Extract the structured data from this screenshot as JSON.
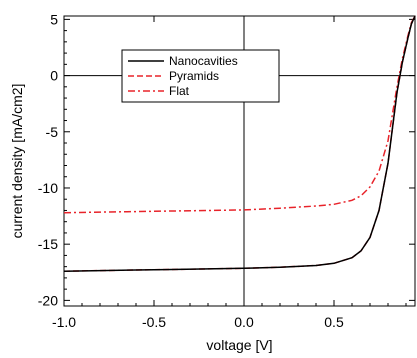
{
  "chart_data": {
    "type": "line",
    "xlabel": "voltage [V]",
    "ylabel": "current density [mA/cm2]",
    "xlim": [
      -1.0,
      0.95
    ],
    "ylim": [
      -20.5,
      5.3
    ],
    "x_ticks": [
      -1.0,
      -0.5,
      0.0,
      0.5
    ],
    "x_tick_labels": [
      "-1.0",
      "-0.5",
      "0.0",
      "0.5"
    ],
    "y_ticks": [
      -20,
      -15,
      -10,
      -5,
      0,
      5
    ],
    "y_tick_labels": [
      "-20",
      "-15",
      "-10",
      "-5",
      "0",
      "5"
    ],
    "zero_lines": true,
    "legend_position": "top-left",
    "series": [
      {
        "name": "Nanocavities",
        "color": "#000000",
        "style": "solid",
        "x": [
          -1.0,
          -0.8,
          -0.6,
          -0.4,
          -0.2,
          0.0,
          0.2,
          0.4,
          0.5,
          0.6,
          0.65,
          0.7,
          0.75,
          0.8,
          0.85,
          0.88,
          0.91,
          0.93,
          0.95
        ],
        "y": [
          -17.4,
          -17.35,
          -17.3,
          -17.25,
          -17.2,
          -17.15,
          -17.05,
          -16.9,
          -16.7,
          -16.2,
          -15.6,
          -14.4,
          -12.0,
          -7.8,
          -1.5,
          1.2,
          3.3,
          4.6,
          5.3
        ]
      },
      {
        "name": "Pyramids",
        "color": "#e8232a",
        "style": "dashed",
        "x": [
          -1.0,
          -0.8,
          -0.6,
          -0.4,
          -0.2,
          0.0,
          0.2,
          0.4,
          0.5,
          0.6,
          0.65,
          0.7,
          0.75,
          0.8,
          0.85,
          0.88,
          0.91,
          0.93,
          0.95
        ],
        "y": [
          -17.4,
          -17.35,
          -17.3,
          -17.25,
          -17.2,
          -17.15,
          -17.05,
          -16.9,
          -16.7,
          -16.2,
          -15.6,
          -14.4,
          -12.0,
          -7.8,
          -1.5,
          1.2,
          3.3,
          4.6,
          5.3
        ]
      },
      {
        "name": "Flat",
        "color": "#e8232a",
        "style": "dashdot",
        "x": [
          -1.0,
          -0.8,
          -0.6,
          -0.4,
          -0.2,
          0.0,
          0.2,
          0.4,
          0.5,
          0.6,
          0.65,
          0.7,
          0.75,
          0.8,
          0.85,
          0.88,
          0.91,
          0.93,
          0.95
        ],
        "y": [
          -12.2,
          -12.15,
          -12.1,
          -12.05,
          -12.0,
          -11.95,
          -11.8,
          -11.6,
          -11.45,
          -11.1,
          -10.7,
          -9.9,
          -8.5,
          -5.8,
          -1.0,
          1.5,
          3.5,
          4.7,
          5.3
        ]
      }
    ]
  }
}
